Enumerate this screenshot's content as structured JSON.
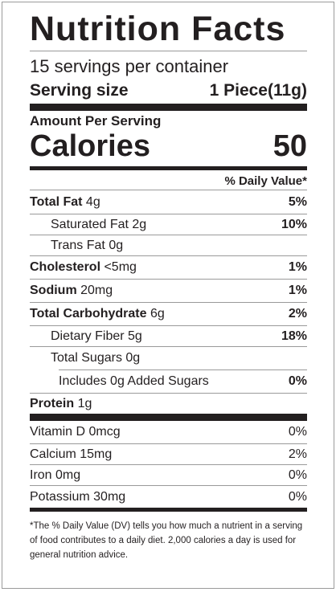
{
  "title": "Nutrition Facts",
  "servings_per_container": "15 servings per container",
  "serving_size": {
    "label": "Serving size",
    "value": "1 Piece(11g)"
  },
  "amount_per_serving": "Amount Per Serving",
  "calories": {
    "label": "Calories",
    "value": "50"
  },
  "daily_value_header": "% Daily Value*",
  "nutrients": [
    {
      "bold_name": "Total Fat",
      "amount": " 4g",
      "dv": "5%"
    },
    {
      "bold_name": "",
      "amount": "Saturated Fat 2g",
      "dv": "10%"
    },
    {
      "bold_name": "",
      "amount": "Trans Fat 0g",
      "dv": ""
    },
    {
      "bold_name": "Cholesterol",
      "amount": " <5mg",
      "dv": "1%"
    },
    {
      "bold_name": "Sodium",
      "amount": " 20mg",
      "dv": "1%"
    },
    {
      "bold_name": "Total Carbohydrate",
      "amount": " 6g",
      "dv": "2%"
    },
    {
      "bold_name": "",
      "amount": "Dietary Fiber 5g",
      "dv": "18%"
    },
    {
      "bold_name": "",
      "amount": "Total Sugars 0g",
      "dv": ""
    },
    {
      "bold_name": "",
      "amount": "Includes 0g Added Sugars",
      "dv": "0%"
    },
    {
      "bold_name": "Protein",
      "amount": " 1g",
      "dv": ""
    }
  ],
  "vitamins": [
    {
      "name": "Vitamin D 0mcg",
      "dv": "0%"
    },
    {
      "name": "Calcium 15mg",
      "dv": "2%"
    },
    {
      "name": "Iron 0mg",
      "dv": "0%"
    },
    {
      "name": "Potassium 30mg",
      "dv": "0%"
    }
  ],
  "footnote": "*The % Daily Value (DV) tells you how much a nutrient in a serving of food contributes to a daily diet. 2,000 calories a day is used for general nutrition advice."
}
